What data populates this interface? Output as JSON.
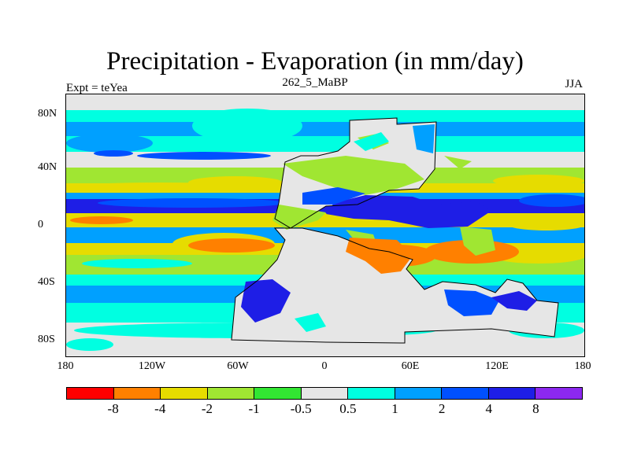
{
  "title": "Precipitation - Evaporation (in mm/day)",
  "subtitle": "262_5_MaBP",
  "left_label": "Expt = teYea",
  "right_label": "JJA",
  "y_ticks": [
    "80N",
    "40N",
    "0",
    "40S",
    "80S"
  ],
  "x_ticks": [
    "180",
    "120W",
    "60W",
    "0",
    "60E",
    "120E",
    "180"
  ],
  "colorbar": {
    "colors": [
      "#ff0000",
      "#ff8000",
      "#e6dc00",
      "#a0e632",
      "#32e632",
      "#e6e6e6",
      "#00ffe1",
      "#00a0ff",
      "#0050ff",
      "#1e1ee6",
      "#8c28f0"
    ],
    "labels": [
      "-8",
      "-4",
      "-2",
      "-1",
      "-0.5",
      "0.5",
      "1",
      "2",
      "4",
      "8"
    ]
  },
  "chart_data": {
    "type": "heatmap",
    "title": "Precipitation - Evaporation (in mm/day)",
    "subtitle": "262_5_MaBP",
    "xlabel": "",
    "ylabel": "",
    "xlim": [
      -180,
      180
    ],
    "ylim": [
      -90,
      90
    ],
    "levels": [
      -8,
      -4,
      -2,
      -1,
      -0.5,
      0.5,
      1,
      2,
      4,
      8
    ],
    "season": "JJA",
    "experiment": "teYea"
  }
}
